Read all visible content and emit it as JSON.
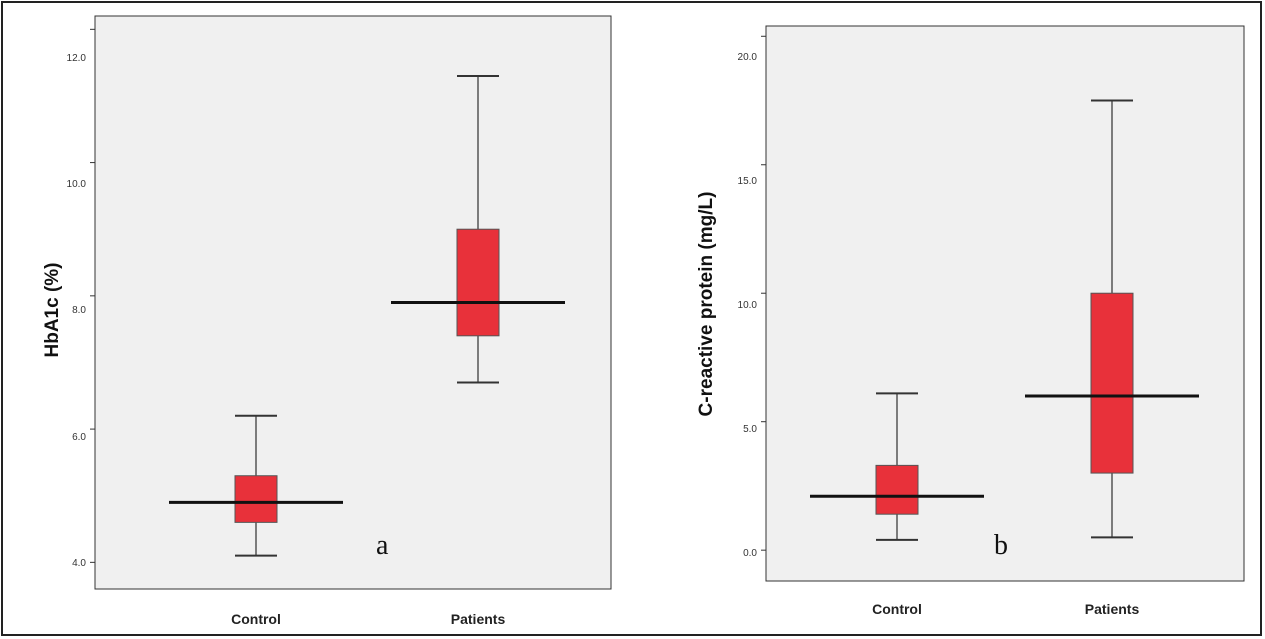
{
  "chart_data": [
    {
      "type": "box",
      "ylabel": "HbA1c (%)",
      "categories": [
        "Control",
        "Patients"
      ],
      "ylim": [
        3.6,
        12.2
      ],
      "yticks": [
        "4.0",
        "6.0",
        "8.0",
        "10.0",
        "12.0"
      ],
      "ytick_values": [
        4,
        6,
        8,
        10,
        12
      ],
      "boxes": [
        {
          "min": 4.1,
          "q1": 4.6,
          "median": 4.9,
          "q3": 5.3,
          "max": 6.2
        },
        {
          "min": 6.7,
          "q1": 7.4,
          "median": 7.9,
          "q3": 9.0,
          "max": 11.3
        }
      ],
      "annotation": "a",
      "box_color": "#e8313a",
      "grid": false
    },
    {
      "type": "box",
      "ylabel": "C-reactive protein (mg/L)",
      "categories": [
        "Control",
        "Patients"
      ],
      "ylim": [
        -1.2,
        20.4
      ],
      "yticks": [
        "0.0",
        "5.0",
        "10.0",
        "15.0",
        "20.0"
      ],
      "ytick_values": [
        0,
        5,
        10,
        15,
        20
      ],
      "boxes": [
        {
          "min": 0.4,
          "q1": 1.4,
          "median": 2.1,
          "q3": 3.3,
          "max": 6.1
        },
        {
          "min": 0.5,
          "q1": 3.0,
          "median": 6.0,
          "q3": 10.0,
          "max": 17.5
        }
      ],
      "annotation": "b",
      "box_color": "#e8313a",
      "grid": false
    }
  ]
}
